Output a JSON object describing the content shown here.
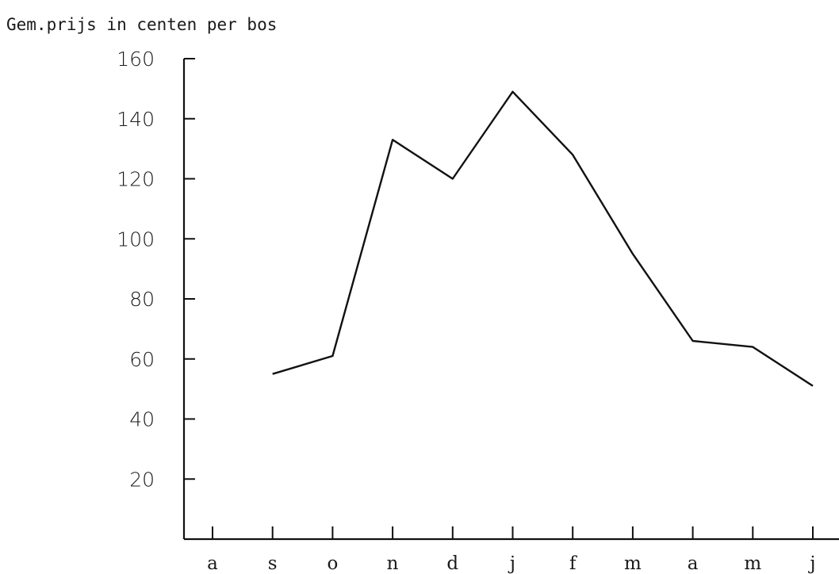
{
  "chart_data": {
    "type": "line",
    "title": "",
    "ylabel": "Gem.prijs in centen per bos",
    "xlabel": "",
    "categories": [
      "a",
      "s",
      "o",
      "n",
      "d",
      "j",
      "f",
      "m",
      "a",
      "m",
      "j"
    ],
    "yticks": [
      20,
      40,
      60,
      80,
      100,
      120,
      140,
      160
    ],
    "ylim": [
      0,
      160
    ],
    "grid": false,
    "series": [
      {
        "values": [
          null,
          55,
          61,
          133,
          120,
          149,
          128,
          95,
          66,
          64,
          51
        ]
      }
    ]
  }
}
